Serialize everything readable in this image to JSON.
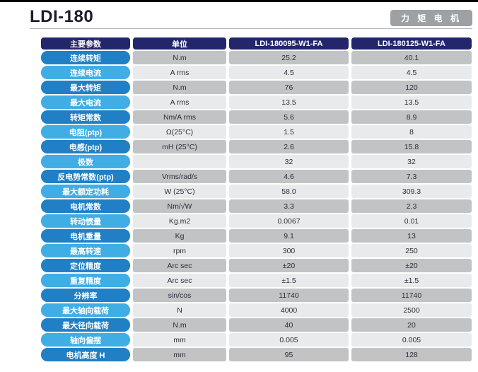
{
  "header": {
    "title": "LDI-180",
    "badge": "力 矩 电 机"
  },
  "table": {
    "columns": [
      "主要参数",
      "单位",
      "LDI-180095-W1-FA",
      "LDI-180125-W1-FA"
    ],
    "rows": [
      [
        "连续转矩",
        "N.m",
        "25.2",
        "40.1"
      ],
      [
        "连续电流",
        "A rms",
        "4.5",
        "4.5"
      ],
      [
        "最大转矩",
        "N.m",
        "76",
        "120"
      ],
      [
        "最大电流",
        "A rms",
        "13.5",
        "13.5"
      ],
      [
        "转矩常数",
        "Nm/A rms",
        "5.6",
        "8.9"
      ],
      [
        "电阻(ptp)",
        "Ω(25°C)",
        "1.5",
        "8"
      ],
      [
        "电感(ptp)",
        "mH (25°C)",
        "2.6",
        "15.8"
      ],
      [
        "极数",
        "",
        "32",
        "32"
      ],
      [
        "反电势常数(ptp)",
        "Vrms/rad/s",
        "4.6",
        "7.3"
      ],
      [
        "最大额定功耗",
        "W (25°C)",
        "58.0",
        "309.3"
      ],
      [
        "电机常数",
        "Nm/√W",
        "3.3",
        "2.3"
      ],
      [
        "转动惯量",
        "Kg.m2",
        "0.0067",
        "0.01"
      ],
      [
        "电机重量",
        "Kg",
        "9.1",
        "13"
      ],
      [
        "最高转速",
        "rpm",
        "300",
        "250"
      ],
      [
        "定位精度",
        "Arc sec",
        "±20",
        "±20"
      ],
      [
        "重复精度",
        "Arc sec",
        "±1.5",
        "±1.5"
      ],
      [
        "分辨率",
        "sin/cos",
        "11740",
        "11740"
      ],
      [
        "最大轴向载荷",
        "N",
        "4000",
        "2500"
      ],
      [
        "最大径向载荷",
        "N.m",
        "40",
        "20"
      ],
      [
        "轴向偏摆",
        "mm",
        "0.005",
        "0.005"
      ],
      [
        "电机高度 H",
        "mm",
        "95",
        "128"
      ]
    ]
  },
  "colors": {
    "header_navy": "#23266a",
    "pill_dark_blue": "#2180c5",
    "pill_light_blue": "#40aee4",
    "cell_dark_gray": "#c2c3c5",
    "cell_light_gray": "#e9eaeb",
    "badge_gray": "#9ea1a4",
    "top_bar_black": "#000000"
  }
}
